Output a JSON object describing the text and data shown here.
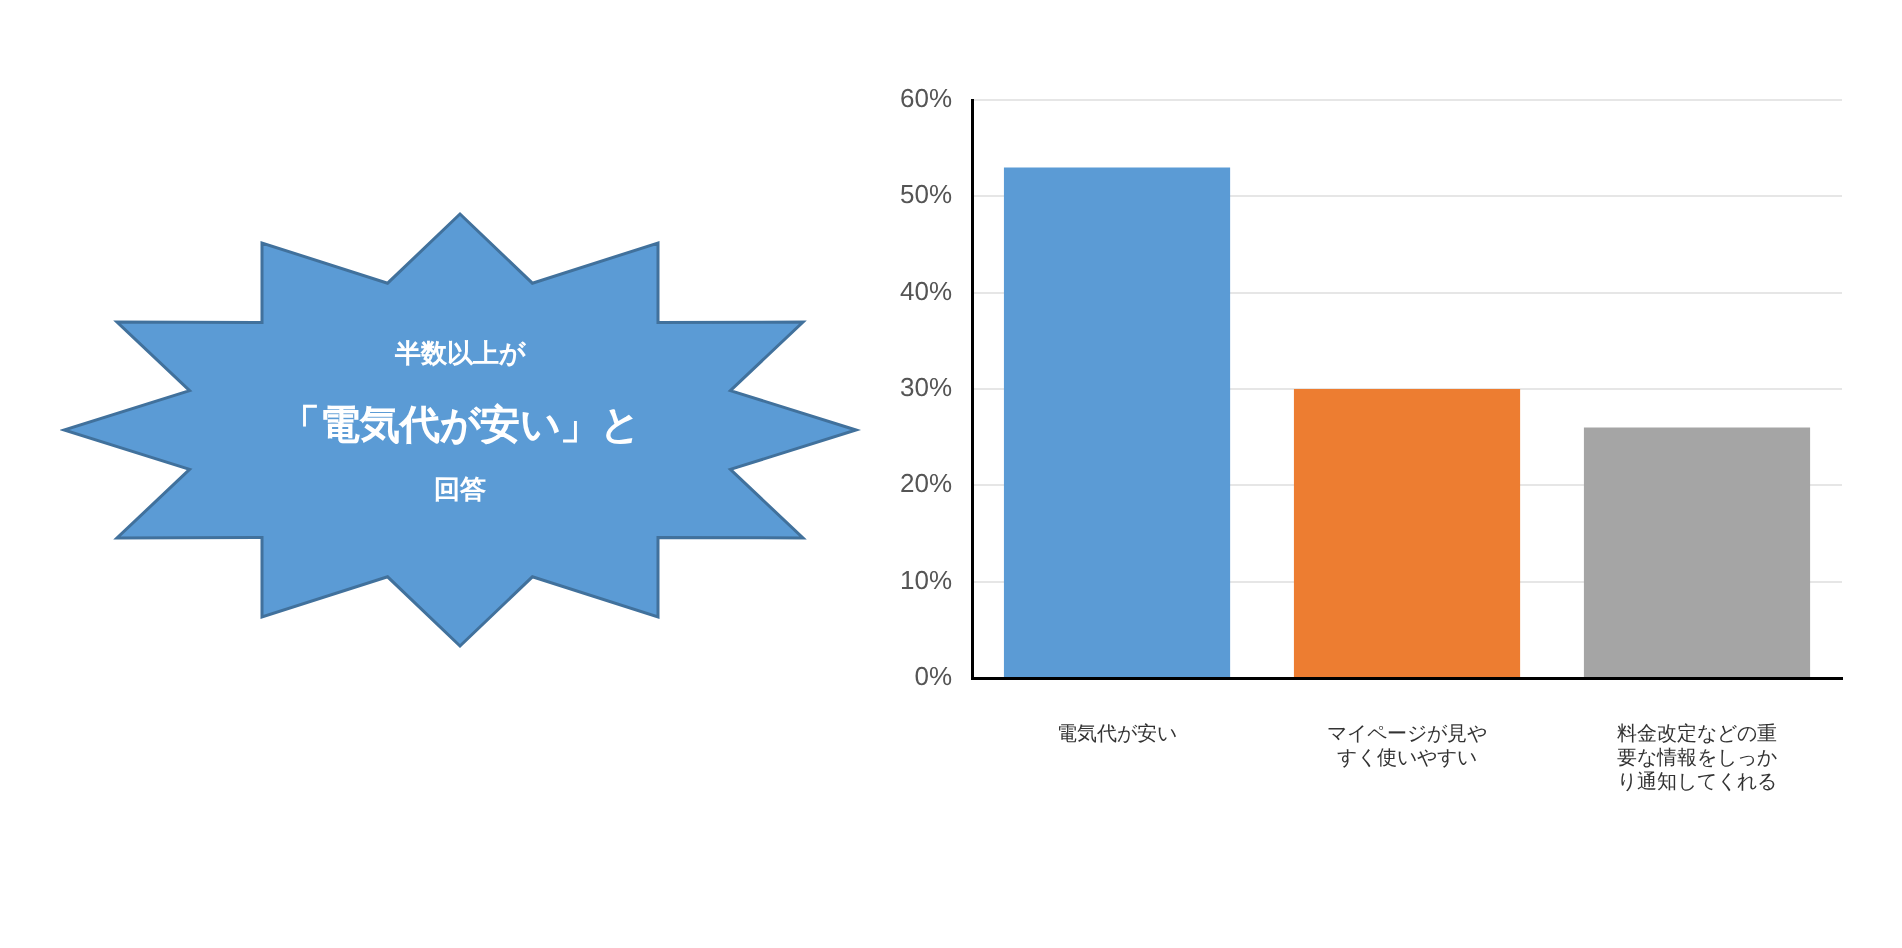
{
  "chart_data": {
    "type": "bar",
    "categories": [
      "電気代が安い",
      "マイページが見やすく使いやすい",
      "料金改定などの重要な情報をしっかり通知してくれる"
    ],
    "values": [
      53,
      30,
      26
    ],
    "colors": [
      "#5b9bd5",
      "#ed7d31",
      "#a5a5a5"
    ],
    "ylim": [
      0,
      60
    ],
    "yticks": [
      {
        "value": 0,
        "label": "0%"
      },
      {
        "value": 10,
        "label": "10%"
      },
      {
        "value": 20,
        "label": "20%"
      },
      {
        "value": 30,
        "label": "30%"
      },
      {
        "value": 40,
        "label": "40%"
      },
      {
        "value": 50,
        "label": "50%"
      },
      {
        "value": 60,
        "label": "60%"
      }
    ],
    "grid": "y",
    "legend": false,
    "annotations": [
      "半数以上が",
      "「電気代が安い」と",
      "回答"
    ]
  }
}
